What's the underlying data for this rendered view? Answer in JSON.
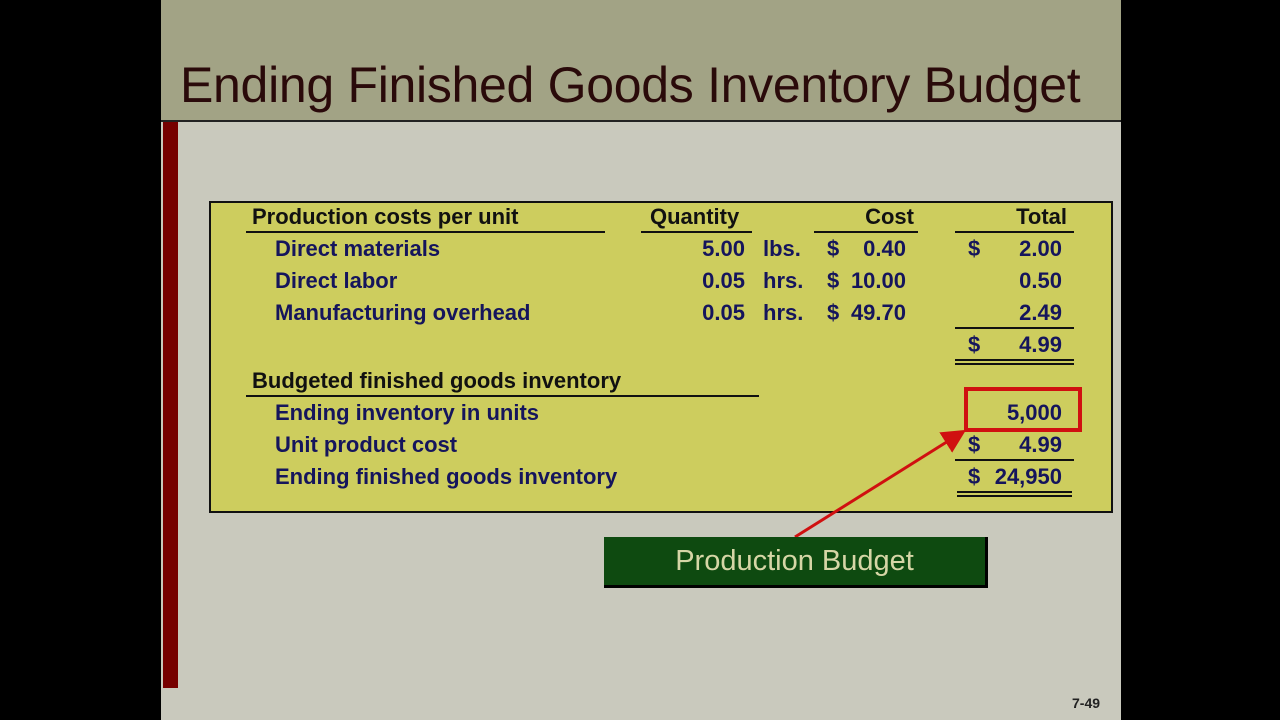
{
  "title": "Ending Finished Goods Inventory Budget",
  "table": {
    "headers": {
      "label": "Production costs per unit",
      "quantity": "Quantity",
      "cost": "Cost",
      "total": "Total"
    },
    "rows": [
      {
        "label": "Direct materials",
        "quantity": "5.00",
        "unit": "lbs.",
        "cost_sign": "$",
        "cost": "0.40",
        "total_sign": "$",
        "total": "2.00"
      },
      {
        "label": "Direct labor",
        "quantity": "0.05",
        "unit": "hrs.",
        "cost_sign": "$",
        "cost": "10.00",
        "total_sign": "",
        "total": "0.50"
      },
      {
        "label": "Manufacturing overhead",
        "quantity": "0.05",
        "unit": "hrs.",
        "cost_sign": "$",
        "cost": "49.70",
        "total_sign": "",
        "total": "2.49"
      }
    ],
    "subtotal": {
      "sign": "$",
      "value": "4.99"
    },
    "section2_header": "Budgeted finished goods inventory",
    "section2_rows": [
      {
        "label": "Ending inventory in units",
        "sign": "",
        "value": "5,000"
      },
      {
        "label": "Unit product cost",
        "sign": "$",
        "value": "4.99"
      },
      {
        "label": "Ending finished goods inventory",
        "sign": "$",
        "value": "24,950"
      }
    ]
  },
  "callout": "Production Budget",
  "page_number": "7-49",
  "colors": {
    "table_bg": "#cdcd5e",
    "highlight": "#d01010",
    "callout_bg": "#0e4a10",
    "text": "#15155c"
  }
}
